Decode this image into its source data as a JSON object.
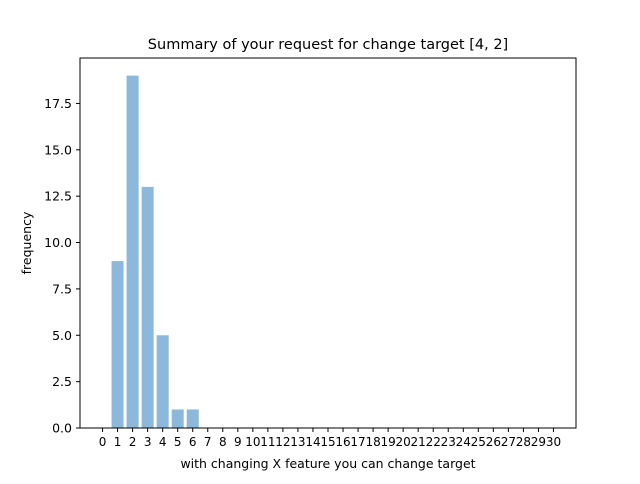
{
  "chart_data": {
    "type": "bar",
    "title": "Summary of your request for change target [4, 2]",
    "xlabel": "with changing X feature you can change target",
    "ylabel": "frequency",
    "categories": [
      "0",
      "1",
      "2",
      "3",
      "4",
      "5",
      "6",
      "7",
      "8",
      "9",
      "10",
      "11",
      "12",
      "13",
      "14",
      "15",
      "16",
      "17",
      "18",
      "19",
      "20",
      "21",
      "22",
      "23",
      "24",
      "25",
      "26",
      "27",
      "28",
      "29",
      "30"
    ],
    "values": [
      0,
      9,
      19,
      13,
      5,
      1,
      1,
      0,
      0,
      0,
      0,
      0,
      0,
      0,
      0,
      0,
      0,
      0,
      0,
      0,
      0,
      0,
      0,
      0,
      0,
      0,
      0,
      0,
      0,
      0,
      0
    ],
    "yticks": [
      "0.0",
      "2.5",
      "5.0",
      "7.5",
      "10.0",
      "12.5",
      "15.0",
      "17.5"
    ],
    "ylim": [
      0,
      19.95
    ],
    "xlim": [
      -1.5,
      31.5
    ],
    "grid": false,
    "legend": "none",
    "bar_color": "#8cb9db"
  }
}
